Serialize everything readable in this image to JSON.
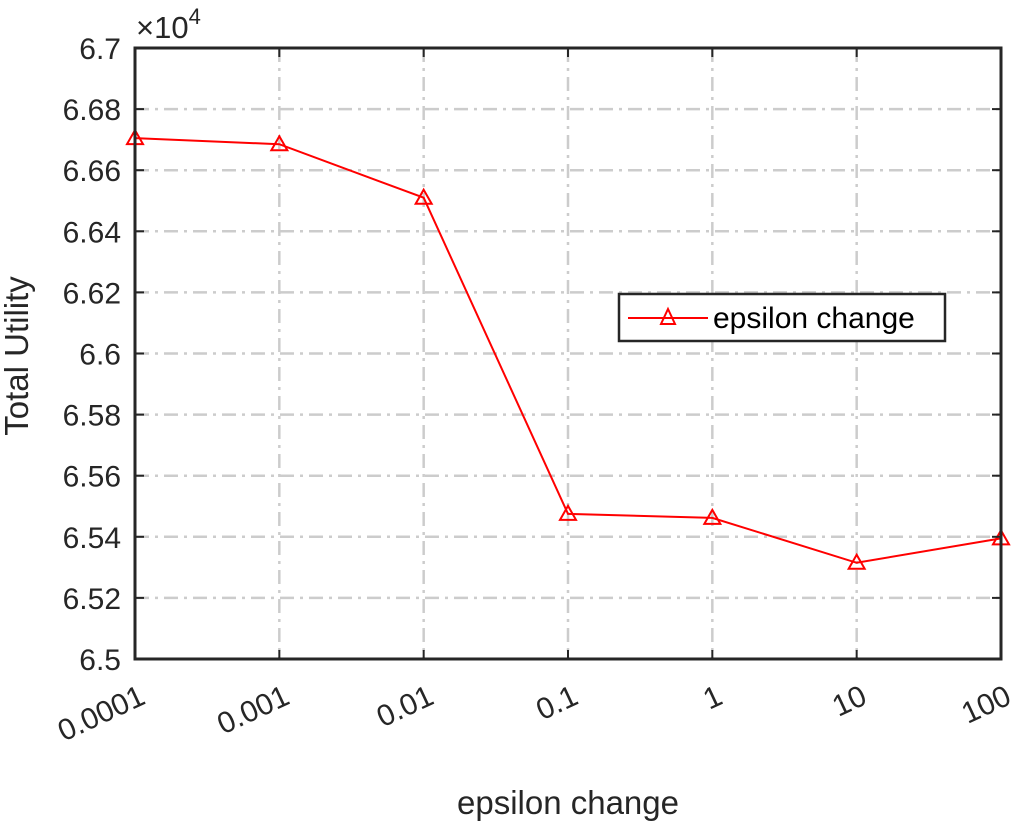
{
  "chart_data": {
    "type": "line",
    "xlabel": "epsilon change",
    "ylabel": "Total Utility",
    "exponent_label": "×10",
    "exponent_power": "4",
    "x_scale": "log",
    "categories": [
      "0.0001",
      "0.001",
      "0.01",
      "0.1",
      "1",
      "10",
      "100"
    ],
    "y_ticks": [
      "6.5",
      "6.52",
      "6.54",
      "6.56",
      "6.58",
      "6.6",
      "6.62",
      "6.64",
      "6.66",
      "6.68",
      "6.7"
    ],
    "ylim": [
      65000,
      67000
    ],
    "grid": true,
    "legend_position": "right",
    "series": [
      {
        "name": "epsilon change",
        "color": "#ff0000",
        "marker": "triangle",
        "values": [
          66705,
          66685,
          66510,
          65475,
          65462,
          65315,
          65395
        ]
      }
    ]
  }
}
